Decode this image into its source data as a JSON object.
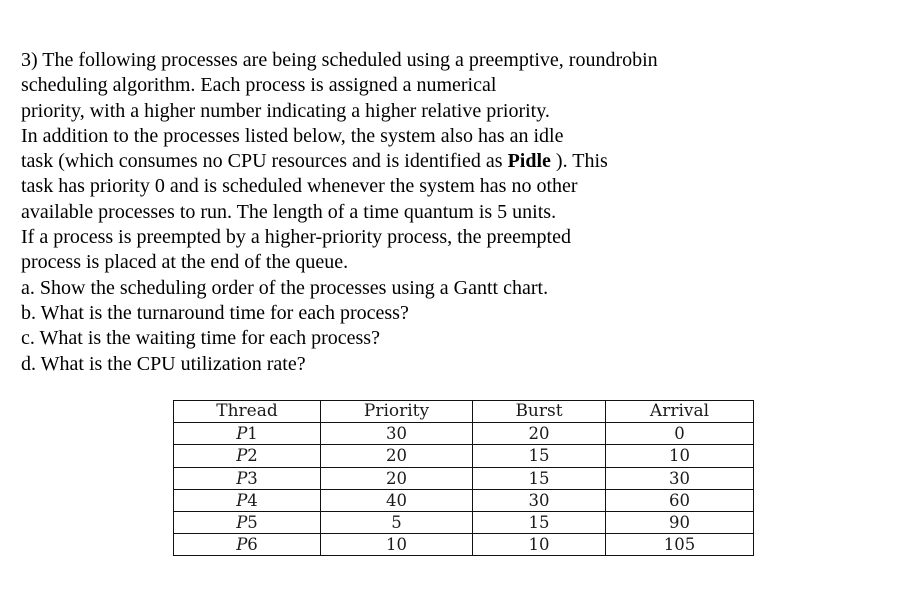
{
  "question": {
    "lines": [
      "3) The following processes are being scheduled using a preemptive, roundrobin",
      "scheduling algorithm. Each process is assigned a numerical",
      "priority, with a higher number indicating a higher relative priority.",
      "In addition to the processes listed below, the system also has an idle",
      "task (which consumes no CPU resources and is identified as ",
      "Pidle",
      " ). This",
      "task has priority 0 and is scheduled whenever the system has no other",
      "available processes to run. The length of a time quantum is 5 units.",
      "If a process is preempted by a higher-priority process, the preempted",
      "process is placed at the end of the queue.",
      "a. Show the scheduling order of the processes using a Gantt chart.",
      "b. What is the turnaround time for each process?",
      "c. What is the waiting time for each process?",
      "d. What is the CPU utilization rate?"
    ]
  },
  "table": {
    "headers": [
      "Thread",
      "Priority",
      "Burst",
      "Arrival"
    ],
    "rows": [
      {
        "letter": "P",
        "num": "1",
        "priority": "30",
        "burst": "20",
        "arrival": "0"
      },
      {
        "letter": "P",
        "num": "2",
        "priority": "20",
        "burst": "15",
        "arrival": "10"
      },
      {
        "letter": "P",
        "num": "3",
        "priority": "20",
        "burst": "15",
        "arrival": "30"
      },
      {
        "letter": "P",
        "num": "4",
        "priority": "40",
        "burst": "30",
        "arrival": "60"
      },
      {
        "letter": "P",
        "num": "5",
        "priority": "5",
        "burst": "15",
        "arrival": "90"
      },
      {
        "letter": "P",
        "num": "6",
        "priority": "10",
        "burst": "10",
        "arrival": "105"
      }
    ]
  }
}
